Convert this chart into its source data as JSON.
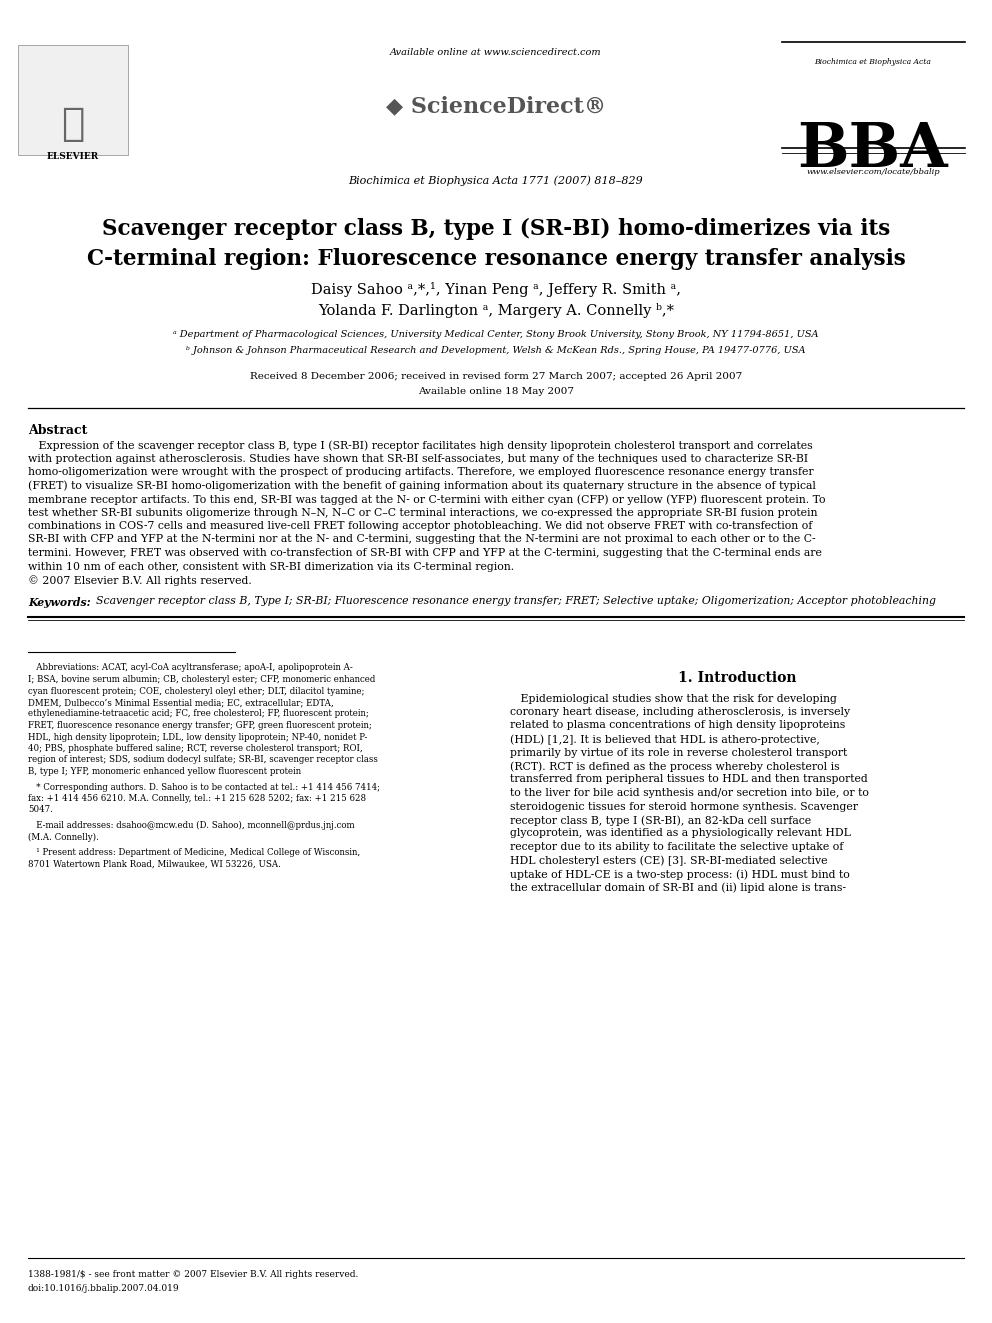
{
  "title_line1": "Scavenger receptor class B, type I (SR-BI) homo-dimerizes via its",
  "title_line2": "C-terminal region: Fluorescence resonance energy transfer analysis",
  "authors_line1": "Daisy Sahoo ᵃ,*,¹, Yinan Peng ᵃ, Jeffery R. Smith ᵃ,",
  "authors_line2": "Yolanda F. Darlington ᵃ, Margery A. Connelly ᵇ,*",
  "affil_a": "ᵃ Department of Pharmacological Sciences, University Medical Center, Stony Brook University, Stony Brook, NY 11794-8651, USA",
  "affil_b": "ᵇ Johnson & Johnson Pharmaceutical Research and Development, Welsh & McKean Rds., Spring House, PA 19477-0776, USA",
  "received": "Received 8 December 2006; received in revised form 27 March 2007; accepted 26 April 2007",
  "available": "Available online 18 May 2007",
  "journal": "Biochimica et Biophysica Acta 1771 (2007) 818–829",
  "available_online": "Available online at www.sciencedirect.com",
  "elsevier_text": "ELSEVIER",
  "bba_subtitle": "Biochimica et Biophysica Acta",
  "bba_url": "www.elsevier.com/locate/bbalip",
  "abstract_title": "Abstract",
  "abstract_body": [
    "   Expression of the scavenger receptor class B, type I (SR-BI) receptor facilitates high density lipoprotein cholesterol transport and correlates",
    "with protection against atherosclerosis. Studies have shown that SR-BI self-associates, but many of the techniques used to characterize SR-BI",
    "homo-oligomerization were wrought with the prospect of producing artifacts. Therefore, we employed fluorescence resonance energy transfer",
    "(FRET) to visualize SR-BI homo-oligomerization with the benefit of gaining information about its quaternary structure in the absence of typical",
    "membrane receptor artifacts. To this end, SR-BI was tagged at the N- or C-termini with either cyan (CFP) or yellow (YFP) fluorescent protein. To",
    "test whether SR-BI subunits oligomerize through N–N, N–C or C–C terminal interactions, we co-expressed the appropriate SR-BI fusion protein",
    "combinations in COS-7 cells and measured live-cell FRET following acceptor photobleaching. We did not observe FRET with co-transfection of",
    "SR-BI with CFP and YFP at the N-termini nor at the N- and C-termini, suggesting that the N-termini are not proximal to each other or to the C-",
    "termini. However, FRET was observed with co-transfection of SR-BI with CFP and YFP at the C-termini, suggesting that the C-terminal ends are",
    "within 10 nm of each other, consistent with SR-BI dimerization via its C-terminal region.",
    "© 2007 Elsevier B.V. All rights reserved."
  ],
  "keywords_label": "Keywords:",
  "keywords_text": "Scavenger receptor class B, Type I; SR-BI; Fluorescence resonance energy transfer; FRET; Selective uptake; Oligomerization; Acceptor photobleaching",
  "intro_heading": "1. Introduction",
  "intro_body": [
    "   Epidemiological studies show that the risk for developing",
    "coronary heart disease, including atherosclerosis, is inversely",
    "related to plasma concentrations of high density lipoproteins",
    "(HDL) [1,2]. It is believed that HDL is athero-protective,",
    "primarily by virtue of its role in reverse cholesterol transport",
    "(RCT). RCT is defined as the process whereby cholesterol is",
    "transferred from peripheral tissues to HDL and then transported",
    "to the liver for bile acid synthesis and/or secretion into bile, or to",
    "steroidogenic tissues for steroid hormone synthesis. Scavenger",
    "receptor class B, type I (SR-BI), an 82-kDa cell surface",
    "glycoprotein, was identified as a physiologically relevant HDL",
    "receptor due to its ability to facilitate the selective uptake of",
    "HDL cholesteryl esters (CE) [3]. SR-BI-mediated selective",
    "uptake of HDL-CE is a two-step process: (i) HDL must bind to",
    "the extracellular domain of SR-BI and (ii) lipid alone is trans-"
  ],
  "fn_abbrev_lines": [
    "   Abbreviations: ACAT, acyl-CoA acyltransferase; apoA-I, apolipoprotein A-",
    "I; BSA, bovine serum albumin; CB, cholesteryl ester; CFP, monomeric enhanced",
    "cyan fluorescent protein; COE, cholesteryl oleyl ether; DLT, dilacitol tyamine;",
    "DMEM, Dulbecco’s Minimal Essential media; EC, extracellular; EDTA,",
    "ethylenediamine-tetraacetic acid; FC, free cholesterol; FP, fluorescent protein;",
    "FRET, fluorescence resonance energy transfer; GFP, green fluorescent protein;",
    "HDL, high density lipoprotein; LDL, low density lipoprotein; NP-40, nonidet P-",
    "40; PBS, phosphate buffered saline; RCT, reverse cholesterol transport; ROI,",
    "region of interest; SDS, sodium dodecyl sulfate; SR-BI, scavenger receptor class",
    "B, type I; YFP, monomeric enhanced yellow fluorescent protein"
  ],
  "fn_corr_lines": [
    "   * Corresponding authors. D. Sahoo is to be contacted at tel.: +1 414 456 7414;",
    "fax: +1 414 456 6210. M.A. Connelly, tel.: +1 215 628 5202; fax: +1 215 628",
    "5047."
  ],
  "fn_email_lines": [
    "   E-mail addresses: dsahoo@mcw.edu (D. Sahoo), mconnell@prdus.jnj.com",
    "(M.A. Connelly)."
  ],
  "fn_1_lines": [
    "   ¹ Present address: Department of Medicine, Medical College of Wisconsin,",
    "8701 Watertown Plank Road, Milwaukee, WI 53226, USA."
  ],
  "footer_issn": "1388-1981/$ - see front matter © 2007 Elsevier B.V. All rights reserved.",
  "footer_doi": "doi:10.1016/j.bbalip.2007.04.019",
  "bg_color": "#ffffff",
  "text_color": "#000000"
}
